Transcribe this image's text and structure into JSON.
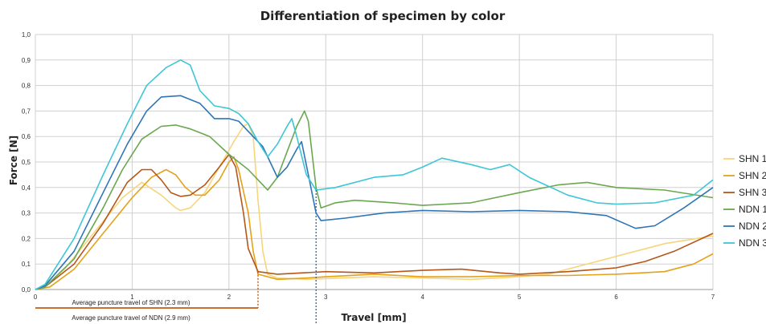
{
  "chart_data": {
    "type": "line",
    "title": "Differentiation of specimen by color",
    "xlabel": "Travel [mm]",
    "ylabel": "Force [N]",
    "xlim": [
      0,
      7
    ],
    "ylim": [
      0,
      1
    ],
    "x_ticks": [
      "0",
      "1",
      "2",
      "3",
      "4",
      "5",
      "6",
      "7"
    ],
    "y_ticks": [
      "0,0",
      "0,1",
      "0,2",
      "0,3",
      "0,4",
      "0,5",
      "0,6",
      "0,7",
      "0,8",
      "0,9",
      "1,0"
    ],
    "grid": true,
    "legend_position": "right",
    "annotations": [
      {
        "label": "Average puncture travel of SHN (2.3 mm)",
        "x": 2.3,
        "color": "#c55a11"
      },
      {
        "label": "Average puncture travel of NDN (2.9 mm)",
        "x": 2.9,
        "color": "#2e75b6"
      }
    ],
    "series": [
      {
        "name": "SHN 1",
        "color": "#f7d57a",
        "points": [
          [
            0,
            0
          ],
          [
            0.1,
            0.01
          ],
          [
            0.3,
            0.08
          ],
          [
            0.6,
            0.22
          ],
          [
            0.9,
            0.36
          ],
          [
            1.1,
            0.42
          ],
          [
            1.3,
            0.37
          ],
          [
            1.45,
            0.32
          ],
          [
            1.5,
            0.31
          ],
          [
            1.6,
            0.32
          ],
          [
            1.75,
            0.38
          ],
          [
            1.9,
            0.48
          ],
          [
            2.05,
            0.58
          ],
          [
            2.15,
            0.64
          ],
          [
            2.2,
            0.65
          ],
          [
            2.25,
            0.6
          ],
          [
            2.3,
            0.35
          ],
          [
            2.35,
            0.15
          ],
          [
            2.4,
            0.06
          ],
          [
            2.5,
            0.045
          ],
          [
            2.8,
            0.04
          ],
          [
            3.5,
            0.05
          ],
          [
            4,
            0.045
          ],
          [
            4.5,
            0.04
          ],
          [
            5,
            0.05
          ],
          [
            5.3,
            0.06
          ],
          [
            5.6,
            0.09
          ],
          [
            6,
            0.13
          ],
          [
            6.5,
            0.18
          ],
          [
            7,
            0.21
          ]
        ]
      },
      {
        "name": "SHN 2",
        "color": "#e3a21a",
        "points": [
          [
            0,
            0
          ],
          [
            0.15,
            0.01
          ],
          [
            0.4,
            0.08
          ],
          [
            0.7,
            0.22
          ],
          [
            1,
            0.36
          ],
          [
            1.2,
            0.44
          ],
          [
            1.35,
            0.47
          ],
          [
            1.45,
            0.45
          ],
          [
            1.55,
            0.4
          ],
          [
            1.65,
            0.37
          ],
          [
            1.75,
            0.37
          ],
          [
            1.9,
            0.43
          ],
          [
            2,
            0.5
          ],
          [
            2.05,
            0.52
          ],
          [
            2.1,
            0.47
          ],
          [
            2.2,
            0.3
          ],
          [
            2.25,
            0.15
          ],
          [
            2.3,
            0.06
          ],
          [
            2.5,
            0.04
          ],
          [
            2.8,
            0.045
          ],
          [
            3,
            0.05
          ],
          [
            3.5,
            0.06
          ],
          [
            4,
            0.05
          ],
          [
            4.5,
            0.05
          ],
          [
            5,
            0.055
          ],
          [
            5.5,
            0.055
          ],
          [
            6,
            0.06
          ],
          [
            6.5,
            0.07
          ],
          [
            6.8,
            0.1
          ],
          [
            7,
            0.14
          ]
        ]
      },
      {
        "name": "SHN 3",
        "color": "#b5571a",
        "points": [
          [
            0,
            0
          ],
          [
            0.1,
            0.01
          ],
          [
            0.4,
            0.1
          ],
          [
            0.7,
            0.26
          ],
          [
            0.95,
            0.42
          ],
          [
            1.1,
            0.47
          ],
          [
            1.2,
            0.47
          ],
          [
            1.3,
            0.43
          ],
          [
            1.4,
            0.38
          ],
          [
            1.5,
            0.365
          ],
          [
            1.6,
            0.37
          ],
          [
            1.75,
            0.41
          ],
          [
            1.9,
            0.48
          ],
          [
            2,
            0.53
          ],
          [
            2.07,
            0.48
          ],
          [
            2.15,
            0.3
          ],
          [
            2.2,
            0.16
          ],
          [
            2.3,
            0.07
          ],
          [
            2.5,
            0.06
          ],
          [
            3,
            0.07
          ],
          [
            3.5,
            0.065
          ],
          [
            4,
            0.075
          ],
          [
            4.4,
            0.08
          ],
          [
            4.8,
            0.065
          ],
          [
            5,
            0.06
          ],
          [
            5.5,
            0.07
          ],
          [
            6,
            0.085
          ],
          [
            6.3,
            0.11
          ],
          [
            6.6,
            0.15
          ],
          [
            7,
            0.22
          ]
        ]
      },
      {
        "name": "NDN 1",
        "color": "#6aa84f",
        "points": [
          [
            0,
            0
          ],
          [
            0.1,
            0.01
          ],
          [
            0.4,
            0.12
          ],
          [
            0.7,
            0.32
          ],
          [
            0.9,
            0.47
          ],
          [
            1.1,
            0.59
          ],
          [
            1.3,
            0.64
          ],
          [
            1.45,
            0.645
          ],
          [
            1.6,
            0.63
          ],
          [
            1.8,
            0.6
          ],
          [
            2,
            0.53
          ],
          [
            2.2,
            0.47
          ],
          [
            2.35,
            0.41
          ],
          [
            2.4,
            0.39
          ],
          [
            2.5,
            0.44
          ],
          [
            2.6,
            0.54
          ],
          [
            2.7,
            0.64
          ],
          [
            2.78,
            0.7
          ],
          [
            2.82,
            0.66
          ],
          [
            2.9,
            0.4
          ],
          [
            2.95,
            0.32
          ],
          [
            3.1,
            0.34
          ],
          [
            3.3,
            0.35
          ],
          [
            3.7,
            0.34
          ],
          [
            4,
            0.33
          ],
          [
            4.5,
            0.34
          ],
          [
            5,
            0.38
          ],
          [
            5.4,
            0.41
          ],
          [
            5.7,
            0.42
          ],
          [
            6,
            0.4
          ],
          [
            6.5,
            0.39
          ],
          [
            7,
            0.36
          ]
        ]
      },
      {
        "name": "NDN 2",
        "color": "#2e75b6",
        "points": [
          [
            0,
            0
          ],
          [
            0.1,
            0.015
          ],
          [
            0.4,
            0.15
          ],
          [
            0.7,
            0.38
          ],
          [
            0.95,
            0.57
          ],
          [
            1.15,
            0.7
          ],
          [
            1.3,
            0.755
          ],
          [
            1.5,
            0.76
          ],
          [
            1.7,
            0.73
          ],
          [
            1.85,
            0.67
          ],
          [
            2,
            0.67
          ],
          [
            2.1,
            0.66
          ],
          [
            2.2,
            0.62
          ],
          [
            2.35,
            0.56
          ],
          [
            2.45,
            0.48
          ],
          [
            2.5,
            0.44
          ],
          [
            2.6,
            0.48
          ],
          [
            2.7,
            0.55
          ],
          [
            2.75,
            0.58
          ],
          [
            2.82,
            0.45
          ],
          [
            2.9,
            0.3
          ],
          [
            2.95,
            0.27
          ],
          [
            3.2,
            0.28
          ],
          [
            3.6,
            0.3
          ],
          [
            4,
            0.31
          ],
          [
            4.5,
            0.305
          ],
          [
            5,
            0.31
          ],
          [
            5.5,
            0.305
          ],
          [
            5.9,
            0.29
          ],
          [
            6.2,
            0.24
          ],
          [
            6.4,
            0.25
          ],
          [
            6.7,
            0.32
          ],
          [
            7,
            0.4
          ]
        ]
      },
      {
        "name": "NDN 3",
        "color": "#3ec6d6",
        "points": [
          [
            0,
            0
          ],
          [
            0.1,
            0.02
          ],
          [
            0.4,
            0.2
          ],
          [
            0.7,
            0.45
          ],
          [
            0.95,
            0.65
          ],
          [
            1.15,
            0.8
          ],
          [
            1.35,
            0.87
          ],
          [
            1.5,
            0.9
          ],
          [
            1.6,
            0.88
          ],
          [
            1.7,
            0.78
          ],
          [
            1.85,
            0.72
          ],
          [
            2,
            0.71
          ],
          [
            2.1,
            0.69
          ],
          [
            2.2,
            0.65
          ],
          [
            2.3,
            0.58
          ],
          [
            2.4,
            0.52
          ],
          [
            2.5,
            0.57
          ],
          [
            2.6,
            0.64
          ],
          [
            2.65,
            0.67
          ],
          [
            2.7,
            0.6
          ],
          [
            2.8,
            0.45
          ],
          [
            2.9,
            0.39
          ],
          [
            3.1,
            0.4
          ],
          [
            3.5,
            0.44
          ],
          [
            3.8,
            0.45
          ],
          [
            4,
            0.48
          ],
          [
            4.2,
            0.515
          ],
          [
            4.5,
            0.49
          ],
          [
            4.7,
            0.47
          ],
          [
            4.9,
            0.49
          ],
          [
            5.1,
            0.44
          ],
          [
            5.5,
            0.37
          ],
          [
            5.8,
            0.34
          ],
          [
            6,
            0.335
          ],
          [
            6.4,
            0.34
          ],
          [
            6.8,
            0.37
          ],
          [
            7,
            0.43
          ]
        ]
      }
    ]
  }
}
